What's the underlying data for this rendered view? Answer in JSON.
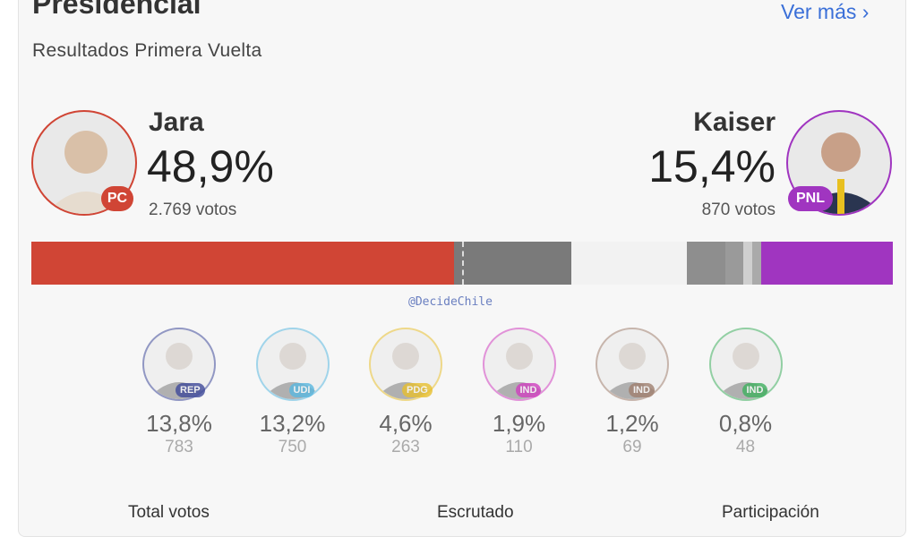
{
  "header": {
    "title": "Presidencial",
    "more_link": "Ver más ›",
    "subtitle": "Resultados Primera Vuelta"
  },
  "leader_left": {
    "name": "Jara",
    "percent": "48,9%",
    "votes": "2.769 votos",
    "party": "PC",
    "color": "#d04535"
  },
  "leader_right": {
    "name": "Kaiser",
    "percent": "15,4%",
    "votes": "870 votos",
    "party": "PNL",
    "color": "#a035c0"
  },
  "watermark": "@DecideChile",
  "candidates": [
    {
      "party": "REP",
      "percent": "13,8%",
      "votes": "783",
      "color": "#3f4a9a"
    },
    {
      "party": "UDI",
      "percent": "13,2%",
      "votes": "750",
      "color": "#5ab8e0"
    },
    {
      "party": "PDG",
      "percent": "4,6%",
      "votes": "263",
      "color": "#e8c030"
    },
    {
      "party": "IND",
      "percent": "1,9%",
      "votes": "110",
      "color": "#d040c0"
    },
    {
      "party": "IND",
      "percent": "1,2%",
      "votes": "69",
      "color": "#a08070"
    },
    {
      "party": "IND",
      "percent": "0,8%",
      "votes": "48",
      "color": "#40b060"
    }
  ],
  "footer": {
    "total_label": "Total votos",
    "scrutiny_label": "Escrutado",
    "participation_label": "Participación"
  }
}
